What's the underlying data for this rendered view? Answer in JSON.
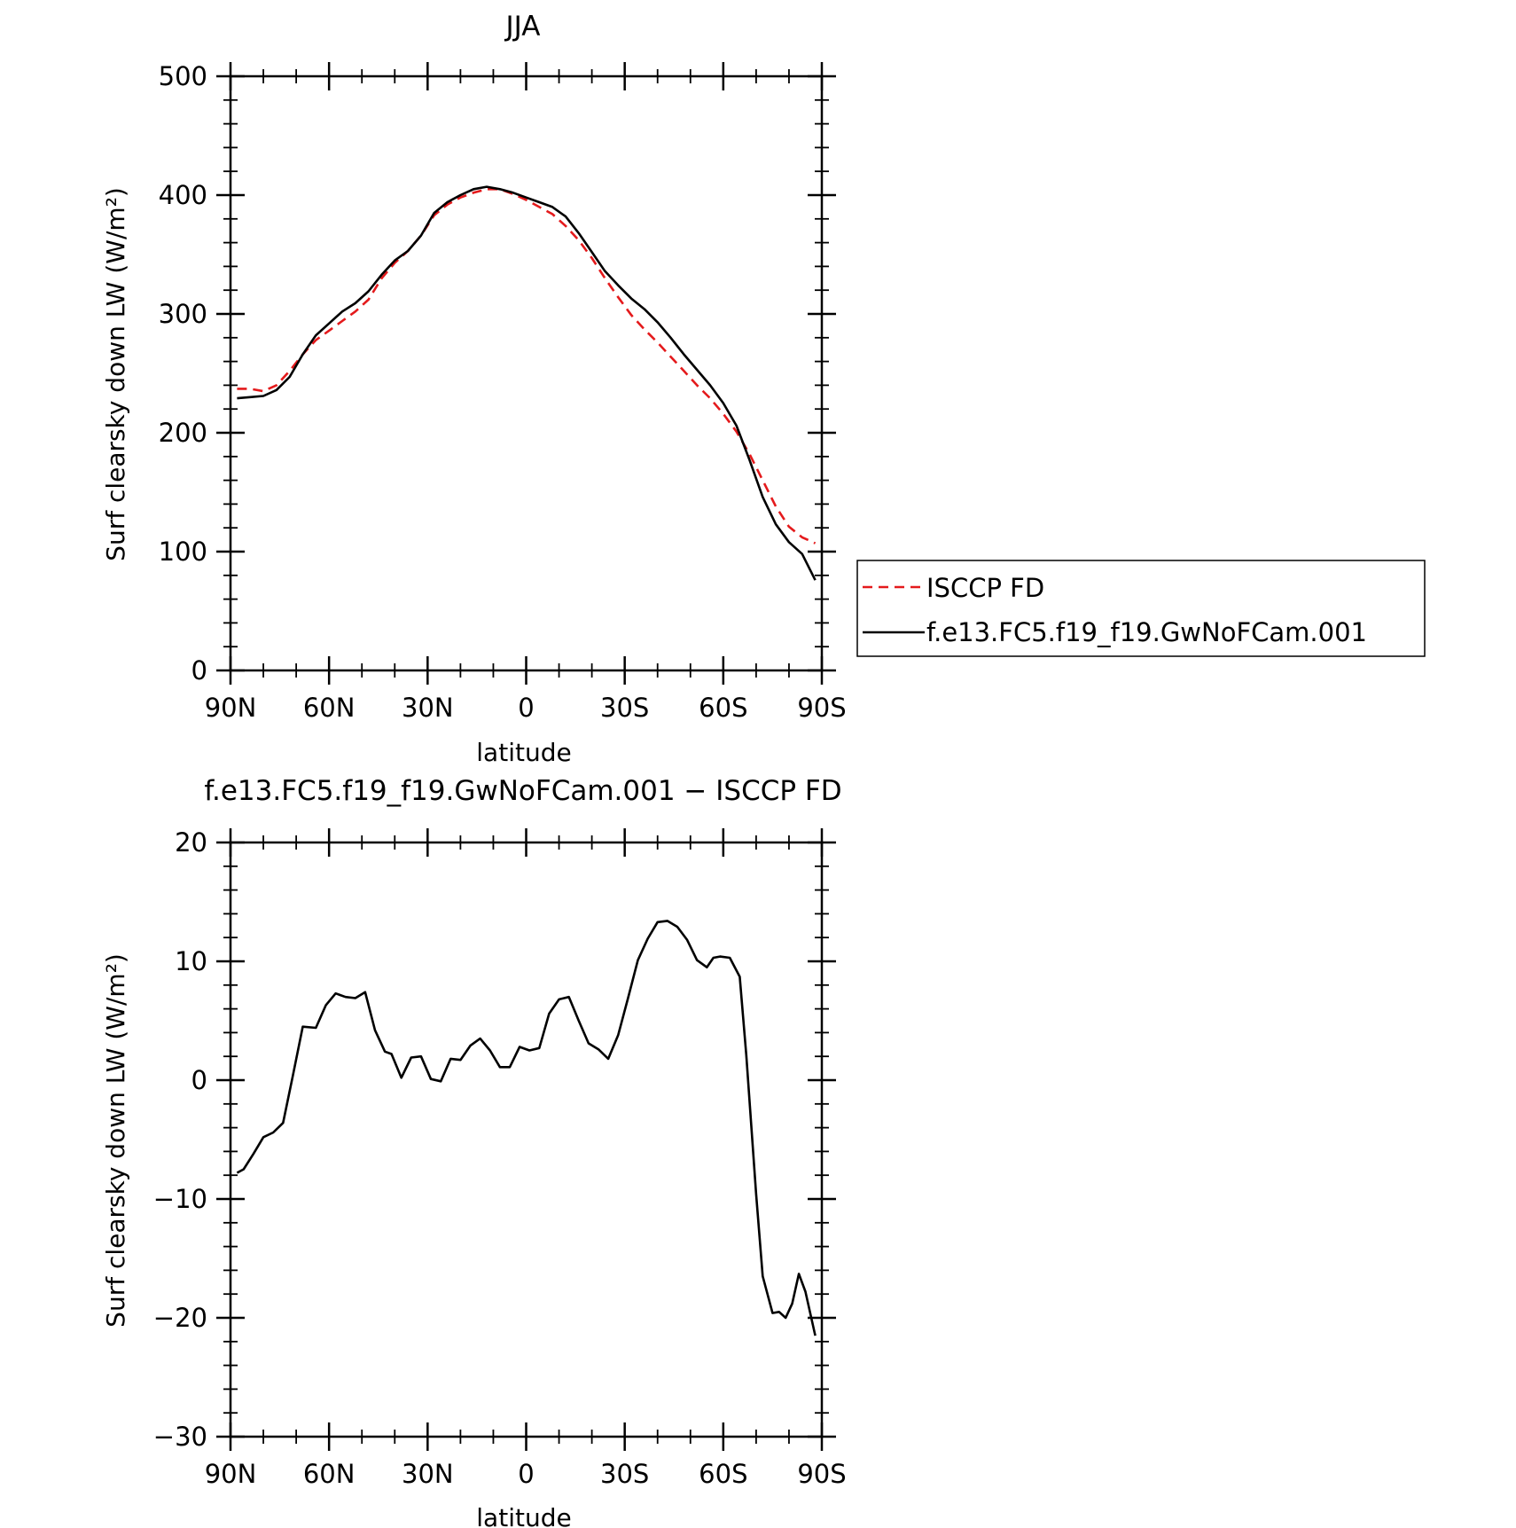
{
  "chart_data": [
    {
      "type": "line",
      "title": "JJA",
      "xlabel": "latitude",
      "ylabel": "Surf clearsky down LW (W/m²)",
      "ylim": [
        0,
        500
      ],
      "yticks": [
        "0",
        "100",
        "200",
        "300",
        "400",
        "500"
      ],
      "xlim": [
        90,
        -90
      ],
      "xticks": [
        "90N",
        "60N",
        "30N",
        "0",
        "30S",
        "60S",
        "90S"
      ],
      "legend": "right",
      "series": [
        {
          "name": "ISCCP FD",
          "color": "#e41a1c",
          "dash": true,
          "x": [
            88,
            84,
            80,
            76,
            72,
            68,
            64,
            60,
            56,
            52,
            48,
            44,
            40,
            36,
            32,
            28,
            24,
            20,
            16,
            12,
            8,
            4,
            0,
            -4,
            -8,
            -12,
            -16,
            -20,
            -24,
            -28,
            -32,
            -36,
            -40,
            -44,
            -48,
            -52,
            -56,
            -60,
            -64,
            -68,
            -72,
            -76,
            -80,
            -84,
            -88
          ],
          "y": [
            237,
            237,
            235,
            240,
            252,
            266,
            278,
            286,
            294,
            302,
            312,
            330,
            343,
            353,
            366,
            383,
            392,
            398,
            402,
            405,
            405,
            401,
            396,
            390,
            384,
            374,
            362,
            347,
            330,
            314,
            299,
            287,
            276,
            264,
            252,
            240,
            229,
            216,
            201,
            182,
            160,
            138,
            121,
            112,
            107
          ]
        },
        {
          "name": "f.e13.FC5.f19_f19.GwNoFCam.001",
          "color": "#000000",
          "dash": false,
          "x": [
            88,
            84,
            80,
            76,
            72,
            68,
            64,
            60,
            56,
            52,
            48,
            44,
            40,
            36,
            32,
            28,
            24,
            20,
            16,
            12,
            8,
            4,
            0,
            -4,
            -8,
            -12,
            -16,
            -20,
            -24,
            -28,
            -32,
            -36,
            -40,
            -44,
            -48,
            -52,
            -56,
            -60,
            -64,
            -68,
            -72,
            -76,
            -80,
            -84,
            -88
          ],
          "y": [
            229,
            230,
            231,
            236,
            247,
            266,
            282,
            292,
            302,
            309,
            319,
            333,
            345,
            353,
            366,
            385,
            394,
            400,
            405,
            407,
            405,
            402,
            398,
            394,
            390,
            382,
            368,
            352,
            336,
            324,
            313,
            304,
            293,
            280,
            266,
            253,
            240,
            225,
            206,
            177,
            146,
            123,
            108,
            98,
            76
          ]
        }
      ]
    },
    {
      "type": "line",
      "title": "f.e13.FC5.f19_f19.GwNoFCam.001 − ISCCP FD",
      "xlabel": "latitude",
      "ylabel": "Surf clearsky down LW (W/m²)",
      "ylim": [
        -30,
        20
      ],
      "yticks": [
        "−30",
        "−20",
        "−10",
        "0",
        "10",
        "20"
      ],
      "xlim": [
        90,
        -90
      ],
      "xticks": [
        "90N",
        "60N",
        "30N",
        "0",
        "30S",
        "60S",
        "90S"
      ],
      "series": [
        {
          "color": "#000000",
          "dash": false,
          "x": [
            88,
            86,
            83,
            80,
            77,
            74,
            71,
            68,
            64,
            61,
            58,
            55,
            52,
            49,
            46,
            43,
            41,
            38,
            35,
            32,
            29,
            26,
            23,
            20,
            17,
            14,
            11,
            8,
            5,
            2,
            -1,
            -4,
            -7,
            -10,
            -13,
            -16,
            -19,
            -22,
            -25,
            -28,
            -31,
            -34,
            -37,
            -40,
            -43,
            -46,
            -49,
            -52,
            -55,
            -57,
            -59,
            -62,
            -65,
            -67,
            -70,
            -72,
            -75,
            -77,
            -79,
            -81,
            -83,
            -85,
            -88
          ],
          "y": [
            -7.8,
            -7.5,
            -6.2,
            -4.8,
            -4.4,
            -3.6,
            0.4,
            4.5,
            4.4,
            6.3,
            7.3,
            7,
            6.9,
            7.4,
            4.2,
            2.4,
            2.2,
            0.2,
            1.9,
            2,
            0.1,
            -0.1,
            1.8,
            1.7,
            2.9,
            3.5,
            2.5,
            1.1,
            1.1,
            2.8,
            2.5,
            2.7,
            5.6,
            6.8,
            7,
            5,
            3.1,
            2.6,
            1.8,
            3.8,
            6.9,
            10.1,
            11.9,
            13.3,
            13.4,
            12.9,
            11.8,
            10.1,
            9.5,
            10.3,
            10.4,
            10.3,
            8.7,
            2.1,
            -9.6,
            -16.5,
            -19.6,
            -19.5,
            -20,
            -18.8,
            -16.3,
            -17.8,
            -21.5
          ]
        }
      ]
    }
  ]
}
